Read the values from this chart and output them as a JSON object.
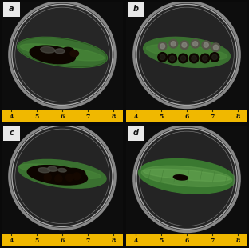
{
  "figure_width": 3.12,
  "figure_height": 3.1,
  "dpi": 100,
  "background_color": "#0a0a0a",
  "panels": [
    "a",
    "b",
    "c",
    "d"
  ],
  "panel_label_color": "#ffffff",
  "panel_label_fontsize": 7,
  "panel_label_fontweight": "bold",
  "panel_label_bg": "#e8e8e8",
  "ruler_color": "#f0b800",
  "ruler_text_color": "#111111",
  "ruler_tick_numbers_ab": [
    "4",
    "5",
    "6",
    "7",
    "8"
  ],
  "ruler_tick_numbers_cd": [
    "4",
    "5",
    "6",
    "7",
    "8"
  ],
  "bg_dark": "#111111",
  "bg_panel": "#1c1c1c",
  "dish_rim_color": "#999999",
  "dish_inner_color": "#2a2a2a",
  "leaf_green_bright": "#4a8a3a",
  "leaf_green_mid": "#3a7030",
  "leaf_green_dark": "#2a5520",
  "lesion_dark": "#0d0500",
  "lesion_brown": "#2a1505",
  "lesion_gray": "#4a4a42",
  "separator_color": "#333333"
}
